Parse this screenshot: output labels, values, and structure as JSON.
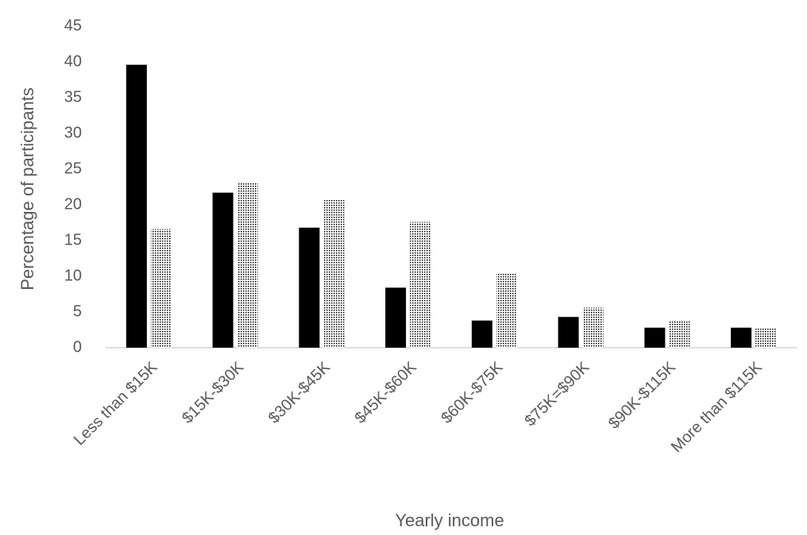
{
  "chart_data": {
    "type": "bar",
    "y_label": "Percentage of participants",
    "x_label": "Yearly income",
    "categories": [
      "Less than $15K",
      "$15K-$30K",
      "$30K-$45K",
      "$45K-$60K",
      "$60K-$75K",
      "$75K=$90K",
      "$90K-$115K",
      "More than $115K"
    ],
    "series": [
      {
        "color": "#000000",
        "pattern": "solid",
        "values": [
          39.6,
          21.7,
          16.8,
          8.4,
          3.8,
          4.3,
          2.8,
          2.8
        ]
      },
      {
        "color": "#000000",
        "pattern": "dots",
        "values": [
          16.6,
          23,
          20.7,
          17.6,
          10.4,
          5.6,
          3.7,
          2.7
        ]
      }
    ],
    "ylim": [
      0,
      45
    ],
    "yticks": [
      0,
      5,
      10,
      15,
      20,
      25,
      30,
      35,
      40,
      45
    ],
    "grid": false
  }
}
